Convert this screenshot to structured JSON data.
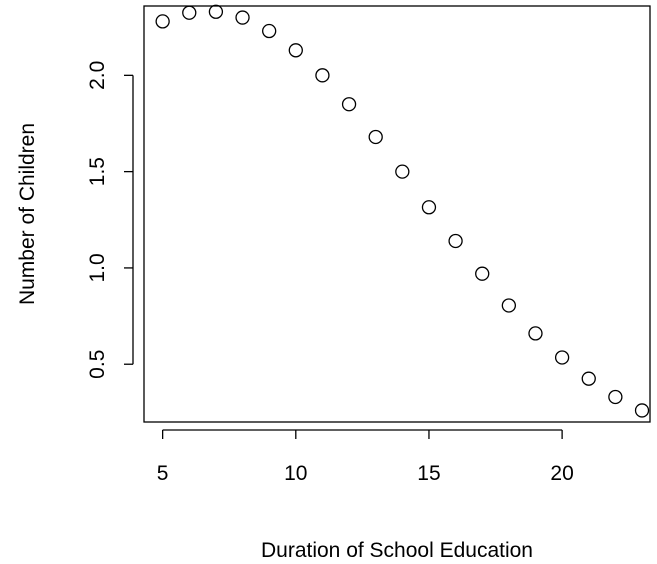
{
  "chart_data": {
    "type": "scatter",
    "title": "",
    "xlabel": "Duration of School Education",
    "ylabel": "Number of Children",
    "xlim": [
      4.3,
      23.3
    ],
    "ylim": [
      0.2,
      2.36
    ],
    "xticks": [
      5,
      10,
      15,
      20
    ],
    "xtick_labels": [
      "5",
      "10",
      "15",
      "20"
    ],
    "yticks": [
      0.5,
      1.0,
      1.5,
      2.0
    ],
    "ytick_labels": [
      "0.5",
      "1.0",
      "1.5",
      "2.0"
    ],
    "grid": false,
    "legend": "none",
    "marker": "open-circle",
    "colors": {
      "marker_stroke": "#000000",
      "axis": "#000000",
      "background": "#ffffff"
    },
    "series": [
      {
        "x": [
          5,
          6,
          7,
          8,
          9,
          10,
          11,
          12,
          13,
          14,
          15,
          16,
          17,
          18,
          19,
          20,
          21,
          22,
          23
        ],
        "y": [
          2.28,
          2.325,
          2.33,
          2.3,
          2.23,
          2.13,
          2.0,
          1.85,
          1.68,
          1.5,
          1.315,
          1.14,
          0.97,
          0.805,
          0.66,
          0.535,
          0.425,
          0.33,
          0.26
        ]
      }
    ]
  }
}
